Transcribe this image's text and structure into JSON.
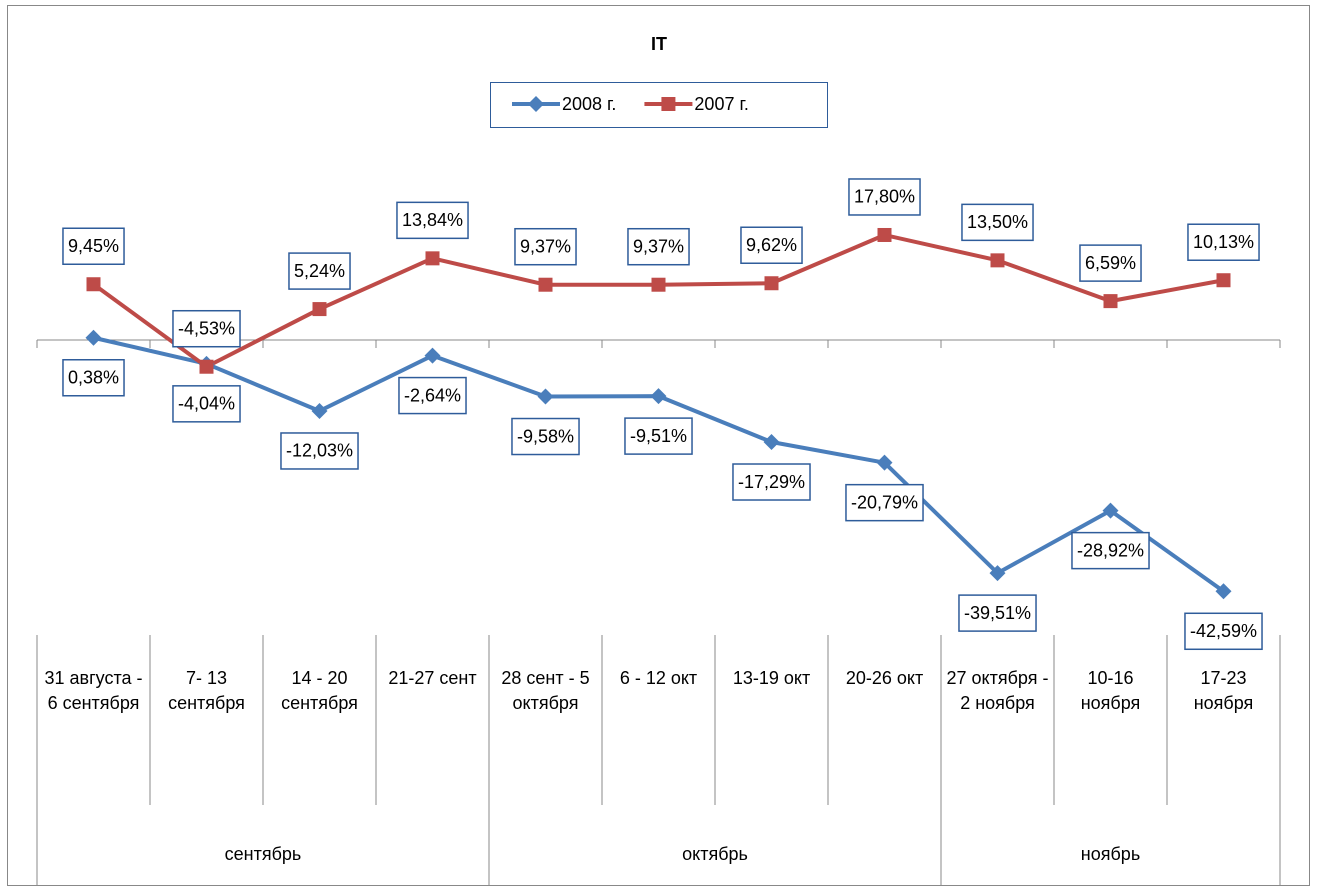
{
  "chart_data": {
    "type": "line",
    "title": "IT",
    "categories": [
      "31 августа - 6 сентября",
      "7- 13 сентября",
      "14 - 20 сентября",
      "21-27 сент",
      "28 сент - 5 октября",
      "6 - 12 окт",
      "13-19 окт",
      "20-26 окт",
      "27 октября - 2 ноября",
      "10-16 ноября",
      "17-23 ноября"
    ],
    "groups": [
      {
        "label": "сентябрь",
        "count": 4
      },
      {
        "label": "октябрь",
        "count": 4
      },
      {
        "label": "ноябрь",
        "count": 3
      }
    ],
    "series": [
      {
        "name": "2008 г.",
        "color": "#4a7ebb",
        "marker": "diamond",
        "values": [
          0.38,
          -4.04,
          -12.03,
          -2.64,
          -9.58,
          -9.51,
          -17.29,
          -20.79,
          -39.51,
          -28.92,
          -42.59
        ],
        "value_labels": [
          "0,38%",
          "-4,04%",
          "-12,03%",
          "-2,64%",
          "-9,58%",
          "-9,51%",
          "-17,29%",
          "-20,79%",
          "-39,51%",
          "-28,92%",
          "-42,59%"
        ]
      },
      {
        "name": "2007 г.",
        "color": "#be4b48",
        "marker": "square",
        "values": [
          9.45,
          -4.53,
          5.24,
          13.84,
          9.37,
          9.37,
          9.62,
          17.8,
          13.5,
          6.59,
          10.13
        ],
        "value_labels": [
          "9,45%",
          "-4,53%",
          "5,24%",
          "13,84%",
          "9,37%",
          "9,37%",
          "9,62%",
          "17,80%",
          "13,50%",
          "6,59%",
          "10,13%"
        ]
      }
    ],
    "ylim": [
      -50,
      20
    ],
    "legend": "top"
  }
}
